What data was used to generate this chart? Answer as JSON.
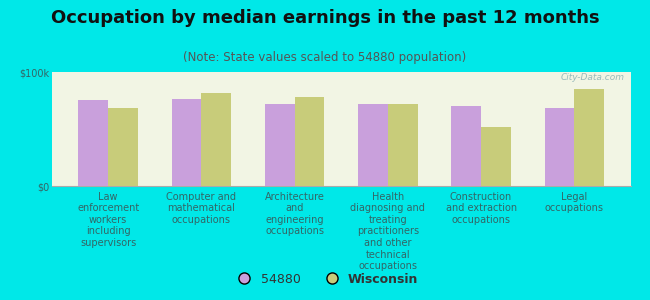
{
  "title": "Occupation by median earnings in the past 12 months",
  "subtitle": "(Note: State values scaled to 54880 population)",
  "background_color": "#00e8e8",
  "plot_bg_color": "#f2f5e4",
  "categories": [
    "Law\nenforcement\nworkers\nincluding\nsupervisors",
    "Computer and\nmathematical\noccupations",
    "Architecture\nand\nengineering\noccupations",
    "Health\ndiagnosing and\ntreating\npractitioners\nand other\ntechnical\noccupations",
    "Construction\nand extraction\noccupations",
    "Legal\noccupations"
  ],
  "values_54880": [
    75000,
    76000,
    72000,
    72000,
    70000,
    68000
  ],
  "values_wisconsin": [
    68000,
    82000,
    78000,
    72000,
    52000,
    85000
  ],
  "color_54880": "#c9a0dc",
  "color_wisconsin": "#c8cc7a",
  "ylim": [
    0,
    100000
  ],
  "yticks": [
    0,
    100000
  ],
  "ytick_labels": [
    "$0",
    "$100k"
  ],
  "legend_54880": "54880",
  "legend_wisconsin": "Wisconsin",
  "watermark": "City-Data.com",
  "title_fontsize": 13,
  "subtitle_fontsize": 8.5,
  "tick_label_fontsize": 7,
  "axis_label_color": "#336666",
  "title_color": "#111111",
  "subtitle_color": "#555555"
}
